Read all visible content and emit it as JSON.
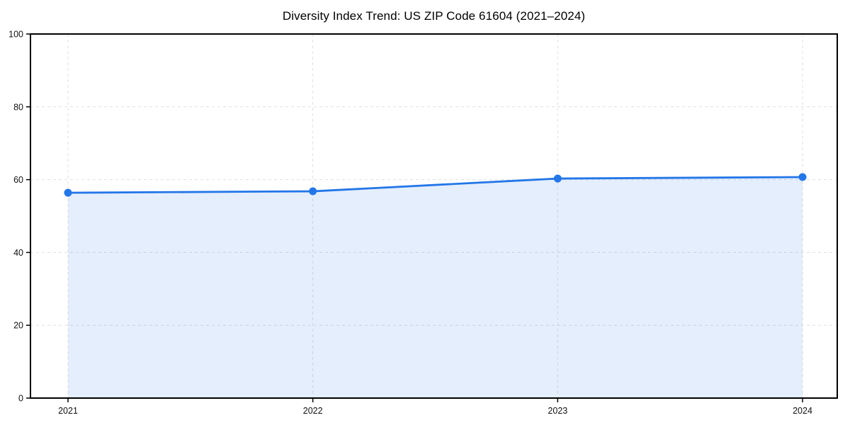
{
  "chart_data": {
    "type": "area",
    "title": "Diversity Index Trend: US ZIP Code 61604 (2021–2024)",
    "series_name": "Diversity Index",
    "x": [
      "2021",
      "2022",
      "2023",
      "2024"
    ],
    "values": [
      56.4,
      56.8,
      60.3,
      60.7
    ],
    "xlabel": "",
    "ylabel": "",
    "ylim": [
      0,
      100
    ],
    "yticks": [
      0,
      20,
      40,
      60,
      80,
      100
    ],
    "xticks": [
      "2021",
      "2022",
      "2023",
      "2024"
    ],
    "grid": true,
    "grid_style": "dashed",
    "legend": false,
    "colors": {
      "line": "#2376e8",
      "marker": "#2376e8",
      "fill": "#2376e8",
      "fill_opacity": 0.12,
      "grid": "#dfdfdf",
      "axis": "#000000",
      "tick_text": "#111111",
      "background": "#ffffff"
    }
  }
}
